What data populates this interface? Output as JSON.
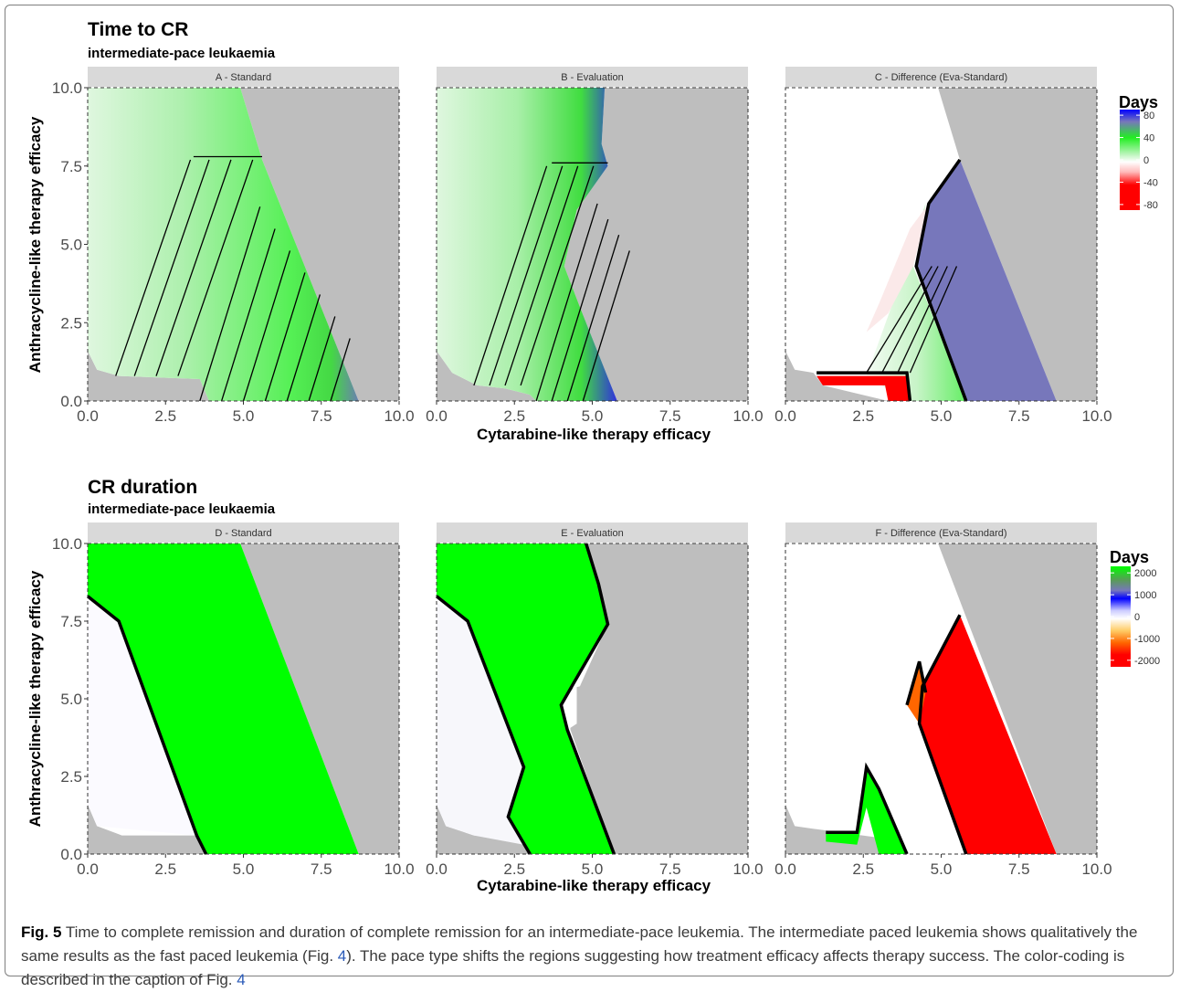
{
  "colors": {
    "grey_region": "#bebebe",
    "strip_bg": "#d9d9d9",
    "light_green": "#dff7df",
    "green": "#00ff00",
    "blue": "#7777bb",
    "red": "#ff0000",
    "orange": "#ff6600",
    "contour": "#000000"
  },
  "chart_data": [
    {
      "type": "heatmap",
      "section_title": "Time to CR",
      "section_subtitle": "intermediate-pace leukaemia",
      "xlabel": "Cytarabine-like therapy efficacy",
      "ylabel": "Anthracycline-like therapy efficacy",
      "xlim": [
        0,
        10
      ],
      "ylim": [
        0,
        10
      ],
      "x_ticks": [
        "0.0",
        "2.5",
        "5.0",
        "7.5",
        "10.0"
      ],
      "y_ticks": [
        "0.0",
        "2.5",
        "5.0",
        "7.5",
        "10.0"
      ],
      "panels": [
        "A - Standard",
        "B - Evaluation",
        "C - Difference (Eva-Standard)"
      ],
      "legend": {
        "title": "Days",
        "ticks": [
          "80",
          "40",
          "0",
          "-40",
          "-80"
        ],
        "tick_values": [
          80,
          40,
          0,
          -40,
          -80
        ],
        "range": [
          -90,
          90
        ],
        "position": "right"
      }
    },
    {
      "type": "heatmap",
      "section_title": "CR duration",
      "section_subtitle": "intermediate-pace leukaemia",
      "xlabel": "Cytarabine-like therapy efficacy",
      "ylabel": "Anthracycline-like therapy efficacy",
      "xlim": [
        0,
        10
      ],
      "ylim": [
        0,
        10
      ],
      "x_ticks": [
        "0.0",
        "2.5",
        "5.0",
        "7.5",
        "10.0"
      ],
      "y_ticks": [
        "0.0",
        "2.5",
        "5.0",
        "7.5",
        "10.0"
      ],
      "panels": [
        "D - Standard",
        "E - Evaluation",
        "F - Difference (Eva-Standard)"
      ],
      "legend": {
        "title": "Days",
        "ticks": [
          "2000",
          "1000",
          "0",
          "-1000",
          "-2000"
        ],
        "tick_values": [
          2000,
          1000,
          0,
          -1000,
          -2000
        ],
        "range": [
          -2300,
          2300
        ],
        "position": "right"
      }
    }
  ],
  "caption": {
    "label": "Fig. 5",
    "text_1": " Time to complete remission and duration of complete remission for an intermediate-pace leukemia. The intermediate paced leukemia shows qualitatively the same results as the fast paced leukemia (Fig. ",
    "ref_1": "4",
    "text_2": "). The pace type shifts the regions suggesting how treatment efficacy affects therapy success. The color-coding is described in the caption of Fig. ",
    "ref_2": "4"
  }
}
